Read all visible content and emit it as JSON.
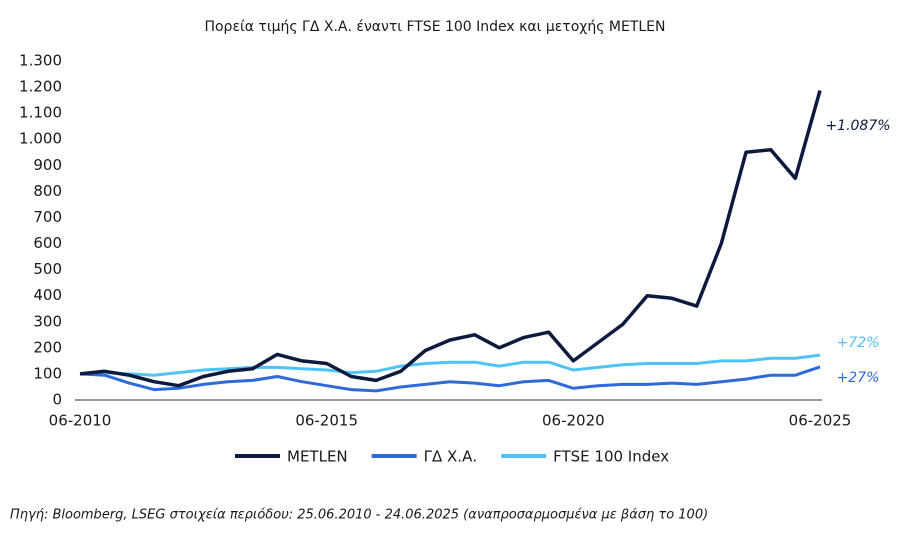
{
  "chart_data": {
    "type": "line",
    "title": "Πορεία τιμής ΓΔ Χ.Α. έναντι FTSE 100 Index και μετοχής METLEN",
    "categories": [
      "06-2010",
      null,
      null,
      null,
      null,
      null,
      null,
      null,
      null,
      null,
      "06-2015",
      null,
      null,
      null,
      null,
      null,
      null,
      null,
      null,
      null,
      "06-2020",
      null,
      null,
      null,
      null,
      null,
      null,
      null,
      null,
      null,
      "06-2025"
    ],
    "series": [
      {
        "name": "METLEN",
        "color": "#0c1a3d",
        "end_label": "+1.087%",
        "values": [
          100,
          110,
          95,
          70,
          55,
          90,
          110,
          120,
          175,
          150,
          140,
          90,
          75,
          110,
          190,
          230,
          250,
          200,
          240,
          260,
          150,
          220,
          290,
          400,
          390,
          360,
          600,
          950,
          960,
          850,
          1187
        ]
      },
      {
        "name": "ΓΔ Χ.Α.",
        "color": "#2f6ad9",
        "end_label": "+27%",
        "values": [
          100,
          95,
          65,
          40,
          45,
          60,
          70,
          75,
          90,
          70,
          55,
          40,
          35,
          50,
          60,
          70,
          65,
          55,
          70,
          75,
          45,
          55,
          60,
          60,
          65,
          60,
          70,
          80,
          95,
          95,
          127
        ]
      },
      {
        "name": "FTSE 100 Index",
        "color": "#4fc3f7",
        "end_label": "+72%",
        "values": [
          100,
          105,
          100,
          95,
          105,
          115,
          120,
          125,
          125,
          120,
          115,
          105,
          110,
          130,
          140,
          145,
          145,
          130,
          145,
          145,
          115,
          125,
          135,
          140,
          140,
          140,
          150,
          150,
          160,
          160,
          172
        ]
      }
    ],
    "ylim": [
      0,
      1300
    ],
    "yticks": [
      0,
      100,
      200,
      300,
      400,
      500,
      600,
      700,
      800,
      900,
      {
        "value": 1000,
        "label": "1.000"
      },
      {
        "value": 1100,
        "label": "1.100"
      },
      {
        "value": 1200,
        "label": "1.200"
      },
      {
        "value": 1300,
        "label": "1.300"
      }
    ],
    "grid": false,
    "source": "Πηγή: Bloomberg, LSEG στοιχεία περιόδου: 25.06.2010 - 24.06.2025 (αναπροσαρμοσμένα με βάση το 100)"
  }
}
